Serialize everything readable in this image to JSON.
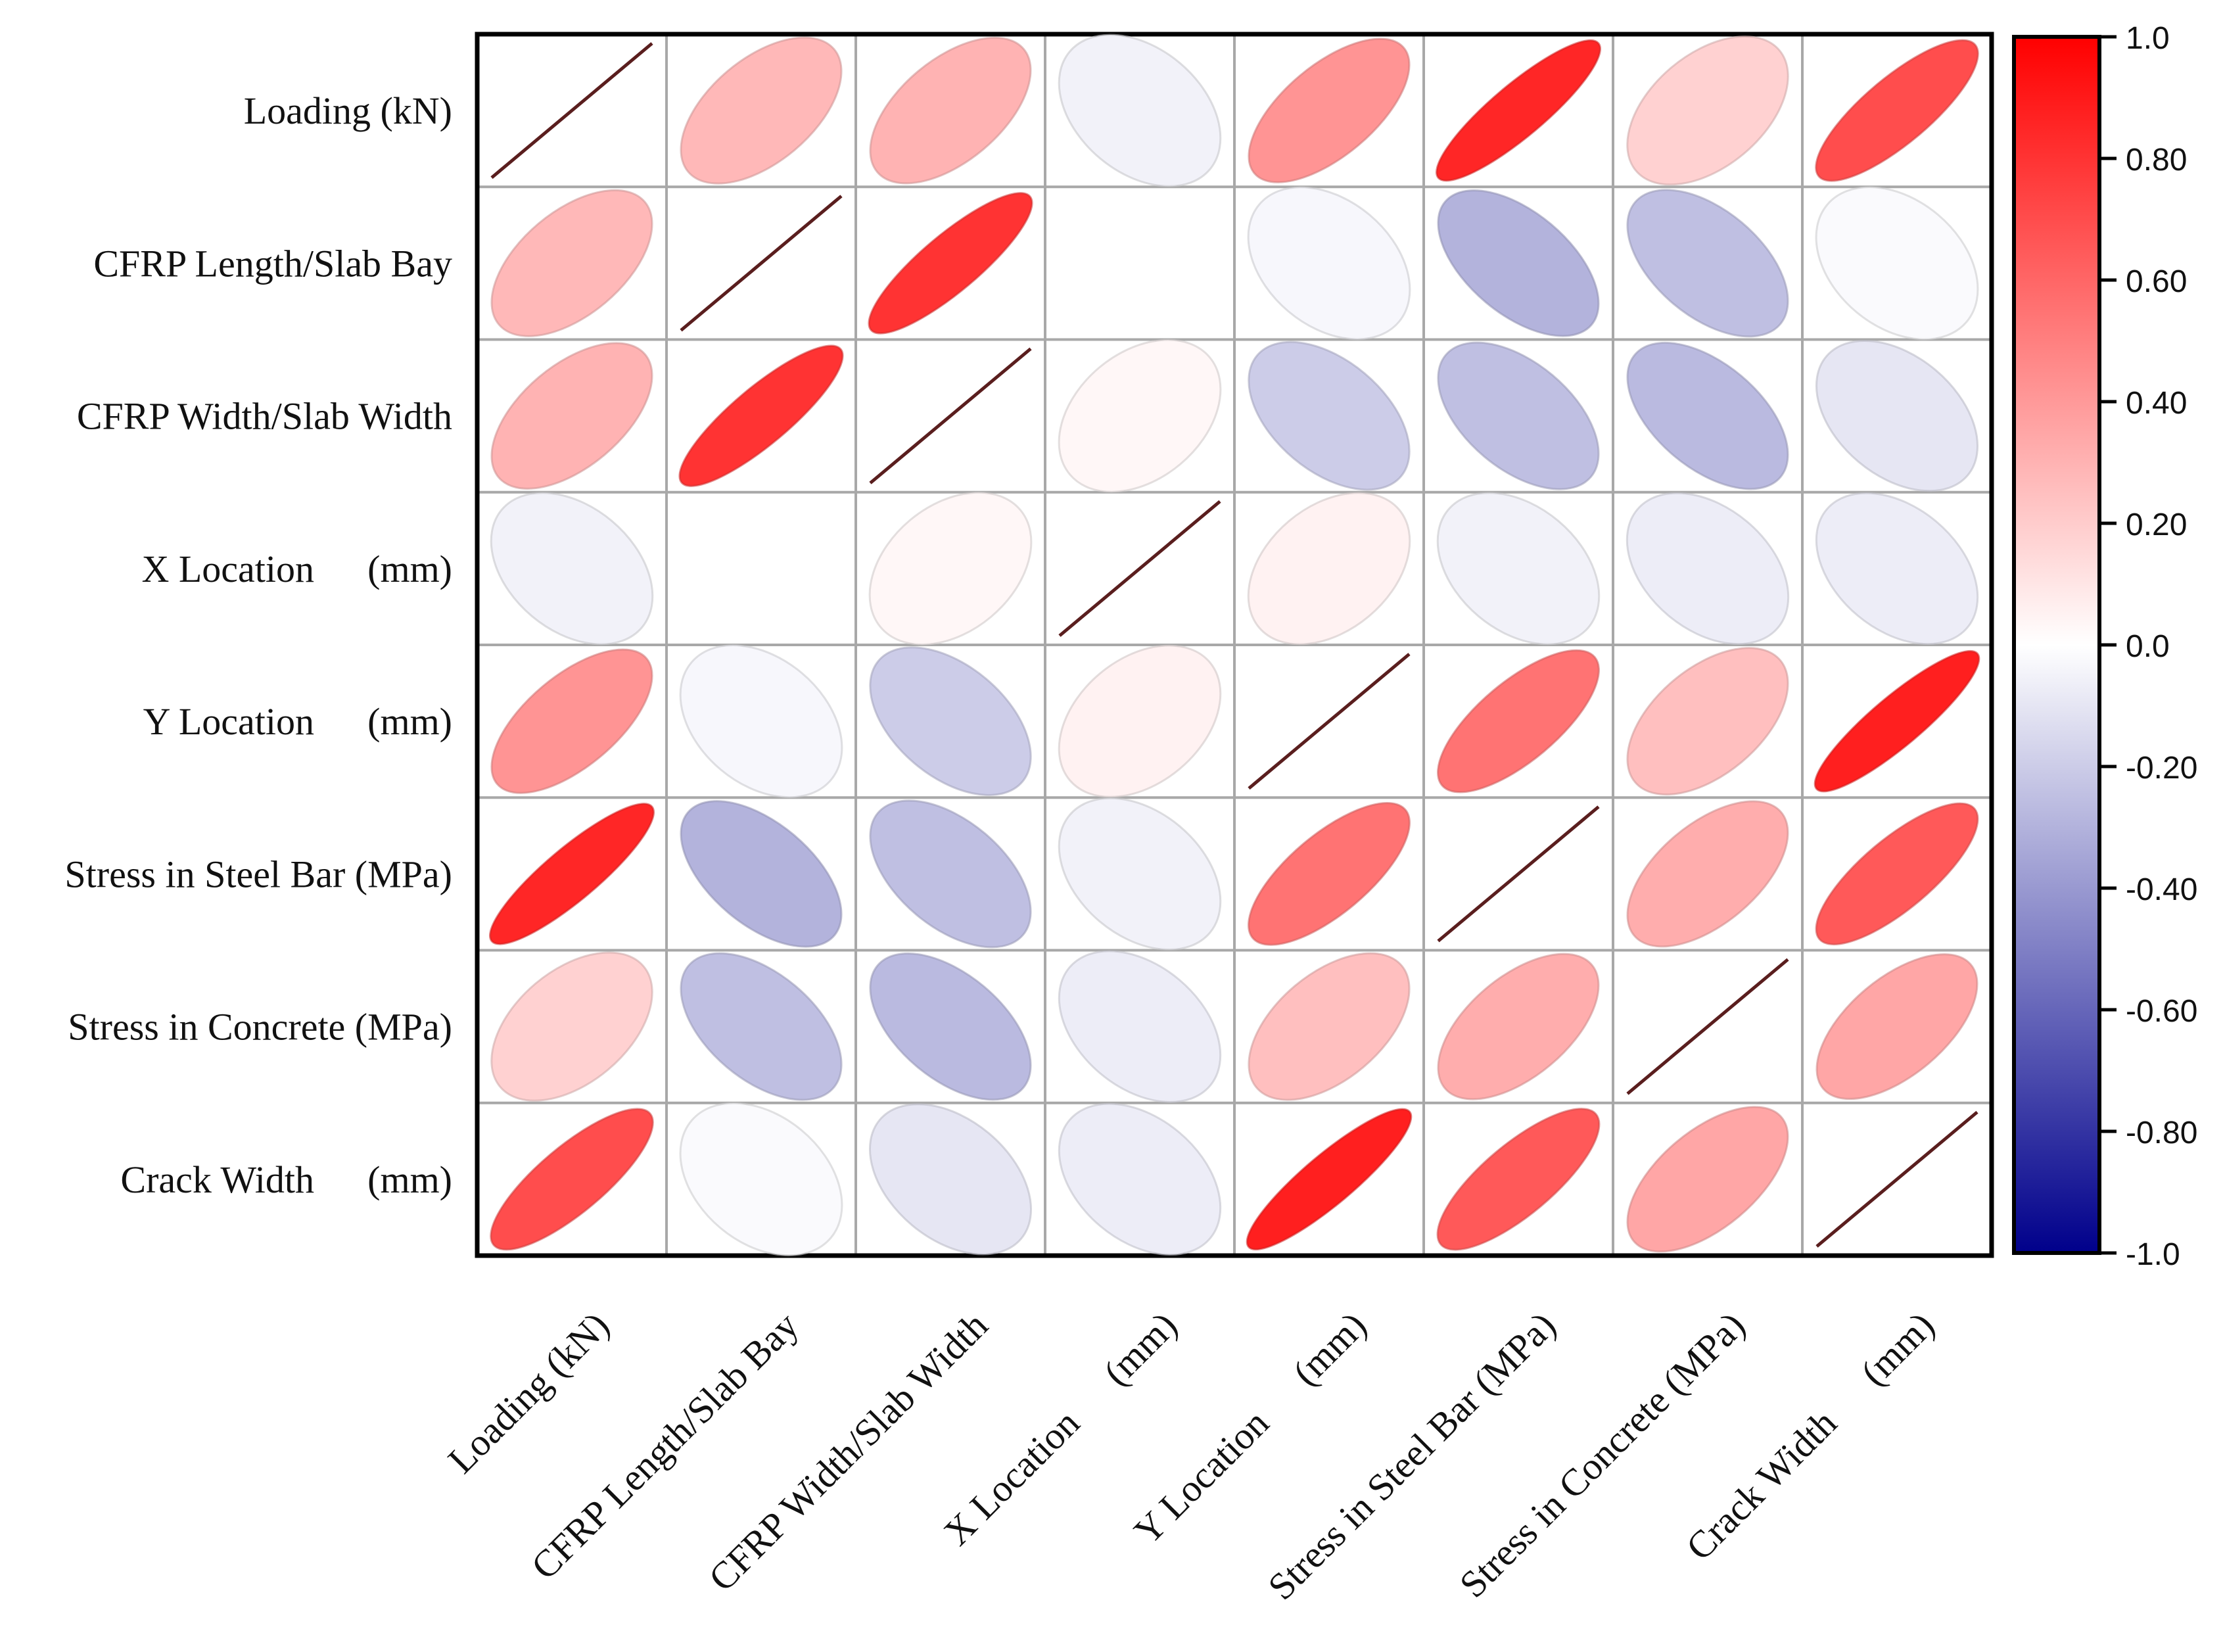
{
  "chart_data": {
    "type": "heatmap",
    "subtype": "ellipse-correlation-matrix",
    "variables": [
      [
        "Loading (kN)"
      ],
      [
        "CFRP Length/Slab Bay"
      ],
      [
        "CFRP Width/Slab Width"
      ],
      [
        "X Location",
        "(mm)"
      ],
      [
        "Y Location",
        "(mm)"
      ],
      [
        "Stress in Steel Bar (MPa)"
      ],
      [
        "Stress in Concrete (MPa)"
      ],
      [
        "Crack Width",
        "(mm)"
      ]
    ],
    "matrix": [
      [
        1.0,
        0.28,
        0.3,
        -0.05,
        0.42,
        0.85,
        0.18,
        0.7
      ],
      [
        0.28,
        1.0,
        0.8,
        0.0,
        -0.03,
        -0.3,
        -0.25,
        -0.02
      ],
      [
        0.3,
        0.8,
        1.0,
        0.03,
        -0.2,
        -0.25,
        -0.27,
        -0.1
      ],
      [
        -0.05,
        0.0,
        0.03,
        1.0,
        0.05,
        -0.05,
        -0.07,
        -0.07
      ],
      [
        0.42,
        -0.03,
        -0.2,
        0.05,
        1.0,
        0.55,
        0.25,
        0.88
      ],
      [
        0.85,
        -0.3,
        -0.25,
        -0.05,
        0.55,
        1.0,
        0.32,
        0.65
      ],
      [
        0.18,
        -0.25,
        -0.27,
        -0.07,
        0.25,
        0.32,
        1.0,
        0.35
      ],
      [
        0.7,
        -0.02,
        -0.1,
        -0.07,
        0.88,
        0.65,
        0.35,
        1.0
      ]
    ],
    "diagonal_style": "line",
    "colorscale": {
      "min": -1.0,
      "max": 1.0,
      "neg_color": "#00008b",
      "mid_color": "#ffffff",
      "pos_color": "#ff0000",
      "ticks": [
        "1.0",
        "0.80",
        "0.60",
        "0.40",
        "0.20",
        "0.0",
        "-0.20",
        "-0.40",
        "-0.60",
        "-0.80",
        "-1.0"
      ]
    },
    "colors": {
      "grid": "#a8a8a8",
      "frame": "#000000",
      "diagonal_line": "#5a1e1e"
    }
  }
}
